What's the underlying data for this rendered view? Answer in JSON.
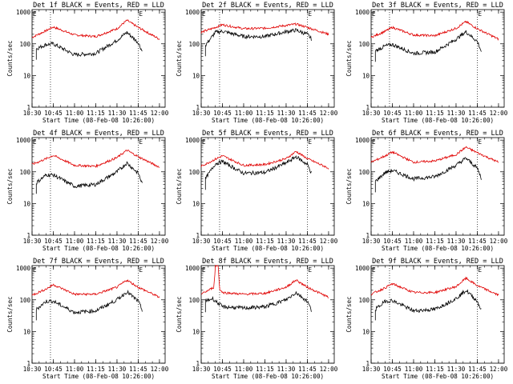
{
  "chart_data": [
    {
      "type": "line",
      "title": "Det 1f BLACK = Events, RED = LLD",
      "xlabel": "Start Time (08-Feb-08 10:26:00)",
      "ylabel": "Counts/sec",
      "x_ticks": [
        "10:30",
        "10:45",
        "11:00",
        "11:15",
        "11:30",
        "11:45",
        "12:00"
      ],
      "y_ticks": [
        "1",
        "10",
        "100",
        "1000"
      ],
      "ylog": true,
      "ylim": [
        1,
        1200
      ],
      "xlim": [
        "10:30",
        "12:04"
      ],
      "vlines": [
        "10:43",
        "11:45"
      ],
      "markers": [
        "10:30",
        "11:45"
      ],
      "marker_glyph": "E",
      "series": [
        {
          "color": "#e00000",
          "x": [
            "10:30",
            "10:40",
            "10:45",
            "11:00",
            "11:15",
            "11:30",
            "11:37",
            "11:45",
            "12:00"
          ],
          "y": [
            160,
            260,
            340,
            190,
            170,
            300,
            550,
            330,
            140
          ]
        },
        {
          "color": "#000000",
          "x": [
            "10:33",
            "10:40",
            "10:45",
            "11:00",
            "11:15",
            "11:30",
            "11:37",
            "11:45",
            "11:48"
          ],
          "y": [
            70,
            95,
            100,
            45,
            50,
            130,
            230,
            110,
            55
          ]
        }
      ]
    },
    {
      "type": "line",
      "title": "Det 2f BLACK = Events, RED = LLD",
      "xlabel": "Start Time (08-Feb-08 10:26:00)",
      "ylabel": "Counts/sec",
      "x_ticks": [
        "10:30",
        "10:45",
        "11:00",
        "11:15",
        "11:30",
        "11:45",
        "12:00"
      ],
      "y_ticks": [
        "1",
        "10",
        "100",
        "1000"
      ],
      "ylog": true,
      "ylim": [
        1,
        1200
      ],
      "xlim": [
        "10:30",
        "12:04"
      ],
      "vlines": [
        "10:43",
        "11:45"
      ],
      "markers": [
        "10:30",
        "11:45"
      ],
      "marker_glyph": "E",
      "series": [
        {
          "color": "#e00000",
          "x": [
            "10:30",
            "10:40",
            "10:45",
            "11:00",
            "11:15",
            "11:30",
            "11:37",
            "11:45",
            "12:00"
          ],
          "y": [
            230,
            330,
            400,
            300,
            310,
            380,
            420,
            330,
            200
          ]
        },
        {
          "color": "#000000",
          "x": [
            "10:33",
            "10:40",
            "10:45",
            "11:00",
            "11:15",
            "11:30",
            "11:37",
            "11:45",
            "11:48"
          ],
          "y": [
            90,
            230,
            250,
            170,
            170,
            240,
            270,
            200,
            140
          ]
        }
      ]
    },
    {
      "type": "line",
      "title": "Det 3f BLACK = Events, RED = LLD",
      "xlabel": "Start Time (08-Feb-08 10:26:00)",
      "ylabel": "Counts/sec",
      "x_ticks": [
        "10:30",
        "10:45",
        "11:00",
        "11:15",
        "11:30",
        "11:45",
        "12:00"
      ],
      "y_ticks": [
        "1",
        "10",
        "100",
        "1000"
      ],
      "ylog": true,
      "ylim": [
        1,
        1200
      ],
      "xlim": [
        "10:30",
        "12:04"
      ],
      "vlines": [
        "10:43",
        "11:45"
      ],
      "markers": [
        "10:30",
        "11:45"
      ],
      "marker_glyph": "E",
      "series": [
        {
          "color": "#e00000",
          "x": [
            "10:30",
            "10:40",
            "10:45",
            "11:00",
            "11:15",
            "11:30",
            "11:37",
            "11:45",
            "12:00"
          ],
          "y": [
            160,
            250,
            330,
            190,
            180,
            310,
            500,
            300,
            140
          ]
        },
        {
          "color": "#000000",
          "x": [
            "10:33",
            "10:40",
            "10:45",
            "11:00",
            "11:15",
            "11:30",
            "11:37",
            "11:45",
            "11:48"
          ],
          "y": [
            60,
            85,
            95,
            50,
            55,
            140,
            240,
            120,
            55
          ]
        }
      ]
    },
    {
      "type": "line",
      "title": "Det 4f BLACK = Events, RED = LLD",
      "xlabel": "Start Time (08-Feb-08 10:26:00)",
      "ylabel": "Counts/sec",
      "x_ticks": [
        "10:30",
        "10:45",
        "11:00",
        "11:15",
        "11:30",
        "11:45",
        "12:00"
      ],
      "y_ticks": [
        "1",
        "10",
        "100",
        "1000"
      ],
      "ylog": true,
      "ylim": [
        1,
        1200
      ],
      "xlim": [
        "10:30",
        "12:04"
      ],
      "vlines": [
        "10:43",
        "11:45"
      ],
      "markers": [
        "10:30",
        "11:45"
      ],
      "marker_glyph": "E",
      "series": [
        {
          "color": "#e00000",
          "x": [
            "10:30",
            "10:40",
            "10:45",
            "11:00",
            "11:15",
            "11:30",
            "11:37",
            "11:45",
            "12:00"
          ],
          "y": [
            170,
            260,
            330,
            160,
            150,
            280,
            480,
            300,
            140
          ]
        },
        {
          "color": "#000000",
          "x": [
            "10:33",
            "10:40",
            "10:45",
            "11:00",
            "11:15",
            "11:30",
            "11:37",
            "11:45",
            "11:48"
          ],
          "y": [
            45,
            80,
            80,
            35,
            40,
            100,
            190,
            90,
            40
          ]
        }
      ]
    },
    {
      "type": "line",
      "title": "Det 5f BLACK = Events, RED = LLD",
      "xlabel": "Start Time (08-Feb-08 10:26:00)",
      "ylabel": "Counts/sec",
      "x_ticks": [
        "10:30",
        "10:45",
        "11:00",
        "11:15",
        "11:30",
        "11:45",
        "12:00"
      ],
      "y_ticks": [
        "1",
        "10",
        "100",
        "1000"
      ],
      "ylog": true,
      "ylim": [
        1,
        1200
      ],
      "xlim": [
        "10:30",
        "12:04"
      ],
      "vlines": [
        "10:43",
        "11:45"
      ],
      "markers": [
        "10:30",
        "11:45"
      ],
      "marker_glyph": "E",
      "series": [
        {
          "color": "#e00000",
          "x": [
            "10:30",
            "10:40",
            "10:45",
            "11:00",
            "11:15",
            "11:30",
            "11:37",
            "11:45",
            "12:00"
          ],
          "y": [
            150,
            250,
            320,
            160,
            170,
            260,
            440,
            260,
            130
          ]
        },
        {
          "color": "#000000",
          "x": [
            "10:33",
            "10:40",
            "10:45",
            "11:00",
            "11:15",
            "11:30",
            "11:37",
            "11:45",
            "11:48"
          ],
          "y": [
            60,
            180,
            210,
            90,
            95,
            190,
            300,
            170,
            90
          ]
        }
      ]
    },
    {
      "type": "line",
      "title": "Det 6f BLACK = Events, RED = LLD",
      "xlabel": "Start Time (08-Feb-08 10:26:00)",
      "ylabel": "Counts/sec",
      "x_ticks": [
        "10:30",
        "10:45",
        "11:00",
        "11:15",
        "11:30",
        "11:45",
        "12:00"
      ],
      "y_ticks": [
        "1",
        "10",
        "100",
        "1000"
      ],
      "ylog": true,
      "ylim": [
        1,
        1200
      ],
      "xlim": [
        "10:30",
        "12:04"
      ],
      "vlines": [
        "10:43",
        "11:45"
      ],
      "markers": [
        "10:30",
        "11:45"
      ],
      "marker_glyph": "E",
      "series": [
        {
          "color": "#e00000",
          "x": [
            "10:30",
            "10:40",
            "10:45",
            "11:00",
            "11:15",
            "11:30",
            "11:37",
            "11:45",
            "12:00"
          ],
          "y": [
            200,
            320,
            420,
            200,
            220,
            350,
            600,
            400,
            200
          ]
        },
        {
          "color": "#000000",
          "x": [
            "10:33",
            "10:40",
            "10:45",
            "11:00",
            "11:15",
            "11:30",
            "11:37",
            "11:45",
            "11:48"
          ],
          "y": [
            50,
            95,
            110,
            60,
            70,
            160,
            270,
            130,
            60
          ]
        }
      ]
    },
    {
      "type": "line",
      "title": "Det 7f BLACK = Events, RED = LLD",
      "xlabel": "Start Time (08-Feb-08 10:26:00)",
      "ylabel": "Counts/sec",
      "x_ticks": [
        "10:30",
        "10:45",
        "11:00",
        "11:15",
        "11:30",
        "11:45",
        "12:00"
      ],
      "y_ticks": [
        "1",
        "10",
        "100",
        "1000"
      ],
      "ylog": true,
      "ylim": [
        1,
        1200
      ],
      "xlim": [
        "10:30",
        "12:04"
      ],
      "vlines": [
        "10:43",
        "11:45"
      ],
      "markers": [
        "10:30",
        "11:45"
      ],
      "marker_glyph": "E",
      "series": [
        {
          "color": "#e00000",
          "x": [
            "10:30",
            "10:40",
            "10:45",
            "11:00",
            "11:15",
            "11:30",
            "11:37",
            "11:45",
            "12:00"
          ],
          "y": [
            140,
            220,
            300,
            150,
            150,
            250,
            420,
            250,
            120
          ]
        },
        {
          "color": "#000000",
          "x": [
            "10:33",
            "10:40",
            "10:45",
            "11:00",
            "11:15",
            "11:30",
            "11:37",
            "11:45",
            "11:48"
          ],
          "y": [
            50,
            90,
            90,
            40,
            45,
            100,
            180,
            90,
            45
          ]
        }
      ]
    },
    {
      "type": "line",
      "title": "Det 8f BLACK = Events, RED = LLD",
      "xlabel": "Start Time (08-Feb-08 10:26:00)",
      "ylabel": "Counts/sec",
      "x_ticks": [
        "10:30",
        "10:45",
        "11:00",
        "11:15",
        "11:30",
        "11:45",
        "12:00"
      ],
      "y_ticks": [
        "1",
        "10",
        "100",
        "1000"
      ],
      "ylog": true,
      "ylim": [
        1,
        1200
      ],
      "xlim": [
        "10:30",
        "12:04"
      ],
      "vlines": [
        "10:43",
        "11:45"
      ],
      "markers": [
        "10:30",
        "11:45"
      ],
      "marker_glyph": "E",
      "series": [
        {
          "color": "#e00000",
          "x": [
            "10:30",
            "10:39",
            "10:40",
            "10:42",
            "10:43",
            "10:45",
            "11:00",
            "11:15",
            "11:30",
            "11:37",
            "11:45",
            "12:00"
          ],
          "y": [
            150,
            250,
            1200,
            1200,
            220,
            170,
            150,
            160,
            250,
            420,
            250,
            120
          ]
        },
        {
          "color": "#000000",
          "x": [
            "10:33",
            "10:38",
            "10:45",
            "11:00",
            "11:15",
            "11:30",
            "11:37",
            "11:45",
            "11:48"
          ],
          "y": [
            90,
            110,
            60,
            55,
            60,
            100,
            170,
            90,
            45
          ]
        }
      ]
    },
    {
      "type": "line",
      "title": "Det 9f BLACK = Events, RED = LLD",
      "xlabel": "Start Time (08-Feb-08 10:26:00)",
      "ylabel": "Counts/sec",
      "x_ticks": [
        "10:30",
        "10:45",
        "11:00",
        "11:15",
        "11:30",
        "11:45",
        "12:00"
      ],
      "y_ticks": [
        "1",
        "10",
        "100",
        "1000"
      ],
      "ylog": true,
      "ylim": [
        1,
        1200
      ],
      "xlim": [
        "10:30",
        "12:04"
      ],
      "vlines": [
        "10:43",
        "11:45"
      ],
      "markers": [
        "10:30",
        "11:45"
      ],
      "marker_glyph": "E",
      "series": [
        {
          "color": "#e00000",
          "x": [
            "10:30",
            "10:40",
            "10:45",
            "11:00",
            "11:15",
            "11:30",
            "11:37",
            "11:45",
            "12:00"
          ],
          "y": [
            150,
            240,
            320,
            170,
            170,
            260,
            480,
            280,
            140
          ]
        },
        {
          "color": "#000000",
          "x": [
            "10:33",
            "10:40",
            "10:45",
            "11:00",
            "11:15",
            "11:30",
            "11:37",
            "11:45",
            "11:48"
          ],
          "y": [
            50,
            90,
            95,
            45,
            50,
            110,
            200,
            90,
            45
          ]
        }
      ]
    }
  ]
}
